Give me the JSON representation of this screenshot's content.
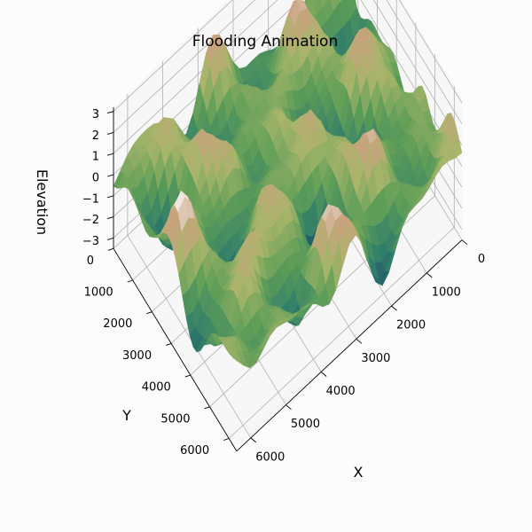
{
  "chart_data": {
    "type": "surface3d",
    "title": "Flooding Animation",
    "xlabel": "X",
    "ylabel": "Y",
    "zlabel": "Elevation",
    "xlim": [
      0,
      6400
    ],
    "ylim": [
      0,
      6400
    ],
    "zlim": [
      -3.5,
      3.2
    ],
    "x_ticks": [
      "0",
      "1000",
      "2000",
      "3000",
      "4000",
      "5000",
      "6000"
    ],
    "y_ticks": [
      "0",
      "1000",
      "2000",
      "3000",
      "4000",
      "5000",
      "6000"
    ],
    "z_ticks": [
      "3",
      "2",
      "1",
      "0",
      "−1",
      "−2",
      "−3"
    ],
    "colormap": "gist_earth",
    "colors": {
      "deep": "#0a1a6b",
      "low": "#2f7d6a",
      "mid": "#5f9e57",
      "upper": "#a8b56a",
      "high": "#c9a27e",
      "peak": "#f4f1ef"
    },
    "grid": true
  }
}
